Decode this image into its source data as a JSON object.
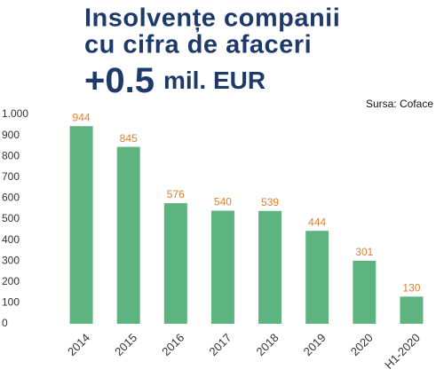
{
  "chart_data": {
    "type": "bar",
    "title": [
      "Insolvențe companii",
      "cu cifra de afaceri"
    ],
    "subtitle": [
      "+0.5",
      "mil. EUR"
    ],
    "source": "Sursa: Coface",
    "categories": [
      "2014",
      "2015",
      "2016",
      "2017",
      "2018",
      "2019",
      "2020",
      "H1-2020"
    ],
    "values": [
      944,
      845,
      576,
      540,
      539,
      444,
      301,
      130
    ],
    "color": "#5db47f",
    "label_color": "#e0812f",
    "ylim": [
      0,
      1000
    ],
    "yticks": [
      0,
      100,
      200,
      300,
      400,
      500,
      600,
      700,
      800,
      900,
      {
        "value": 1000,
        "label": "1.000"
      }
    ],
    "grid": false
  }
}
